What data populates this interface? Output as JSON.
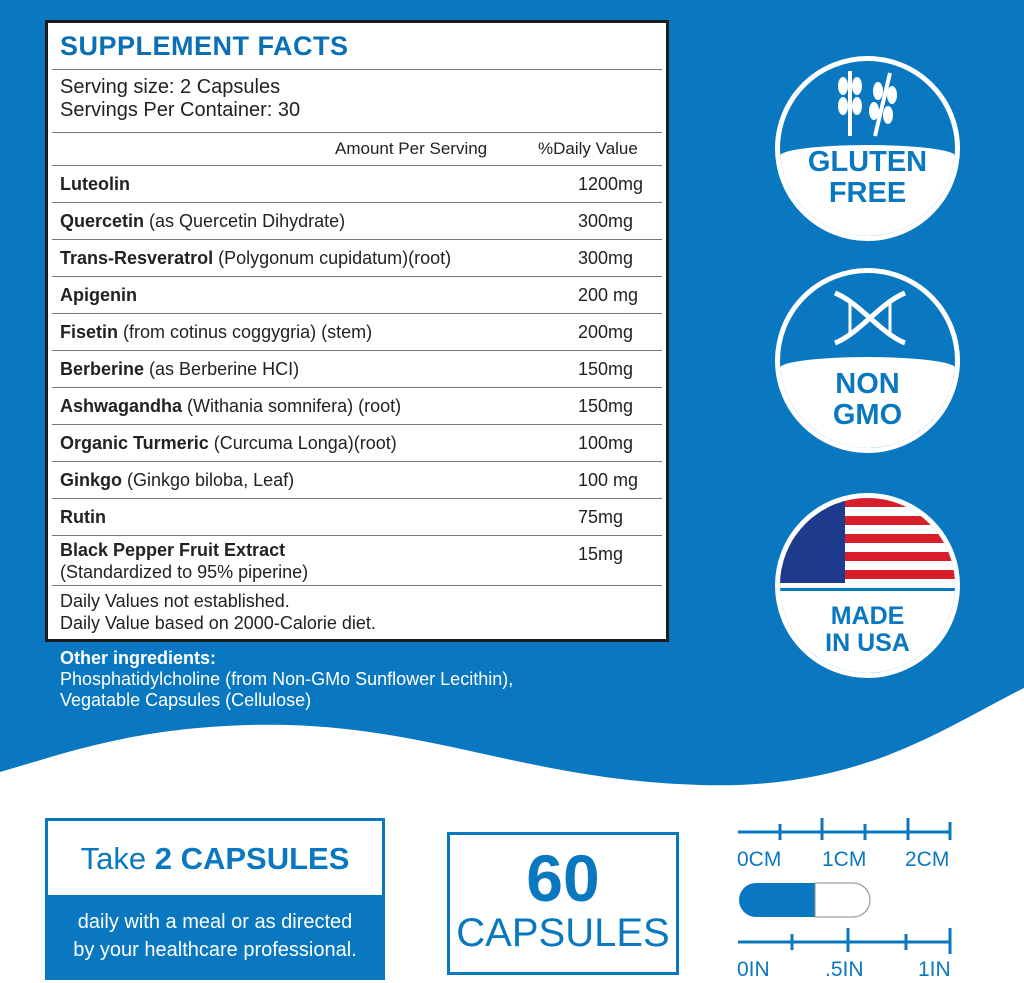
{
  "colors": {
    "brand_blue": "#0a78c0",
    "title_blue": "#0a6fb5"
  },
  "facts": {
    "title": "SUPPLEMENT FACTS",
    "serving_size": "Serving size: 2 Capsules",
    "servings_per_container": "Servings Per Container: 30",
    "col_amount": "Amount Per Serving",
    "col_dv": "%Daily Value",
    "rows": [
      {
        "name": "Luteolin",
        "detail": "",
        "amount": "1200mg"
      },
      {
        "name": "Quercetin",
        "detail": " (as Quercetin Dihydrate)",
        "amount": "300mg"
      },
      {
        "name": "Trans-Resveratrol",
        "detail": " (Polygonum cupidatum)(root)",
        "amount": "300mg"
      },
      {
        "name": "Apigenin",
        "detail": "",
        "amount": "200 mg"
      },
      {
        "name": "Fisetin",
        "detail": " (from cotinus coggygria) (stem)",
        "amount": "200mg"
      },
      {
        "name": "Berberine",
        "detail": " (as Berberine HCI)",
        "amount": "150mg"
      },
      {
        "name": "Ashwagandha",
        "detail": " (Withania somnifera) (root)",
        "amount": "150mg"
      },
      {
        "name": "Organic Turmeric",
        "detail": " (Curcuma Longa)(root)",
        "amount": "100mg"
      },
      {
        "name": "Ginkgo",
        "detail": " (Ginkgo biloba, Leaf)",
        "amount": "100 mg"
      },
      {
        "name": "Rutin",
        "detail": "",
        "amount": "75mg"
      },
      {
        "name": "Black Pepper Fruit Extract",
        "detail": "(Standardized to 95% piperine)",
        "amount": "15mg"
      }
    ],
    "footnote1": "Daily Values not established.",
    "footnote2": "Daily Value based on 2000-Calorie diet."
  },
  "other": {
    "heading": "Other ingredients:",
    "line1": "Phosphatidylcholine (from Non-GMo Sunflower Lecithin),",
    "line2": "Vegatable Capsules (Cellulose)"
  },
  "badges": [
    {
      "icon": "wheat-icon",
      "line1": "GLUTEN",
      "line2": "FREE"
    },
    {
      "icon": "dna-icon",
      "line1": "NON",
      "line2": "GMO"
    },
    {
      "icon": "us-flag-icon",
      "line1": "MADE",
      "line2": "IN USA"
    }
  ],
  "dose": {
    "take": "Take ",
    "bold": "2 CAPSULES",
    "line1": "daily with a meal or as directed",
    "line2": "by your healthcare professional."
  },
  "count": {
    "number": "60",
    "label": "CAPSULES"
  },
  "scale": {
    "cm": [
      "0CM",
      "1CM",
      "2CM"
    ],
    "in": [
      "0IN",
      ".5IN",
      "1IN"
    ]
  }
}
